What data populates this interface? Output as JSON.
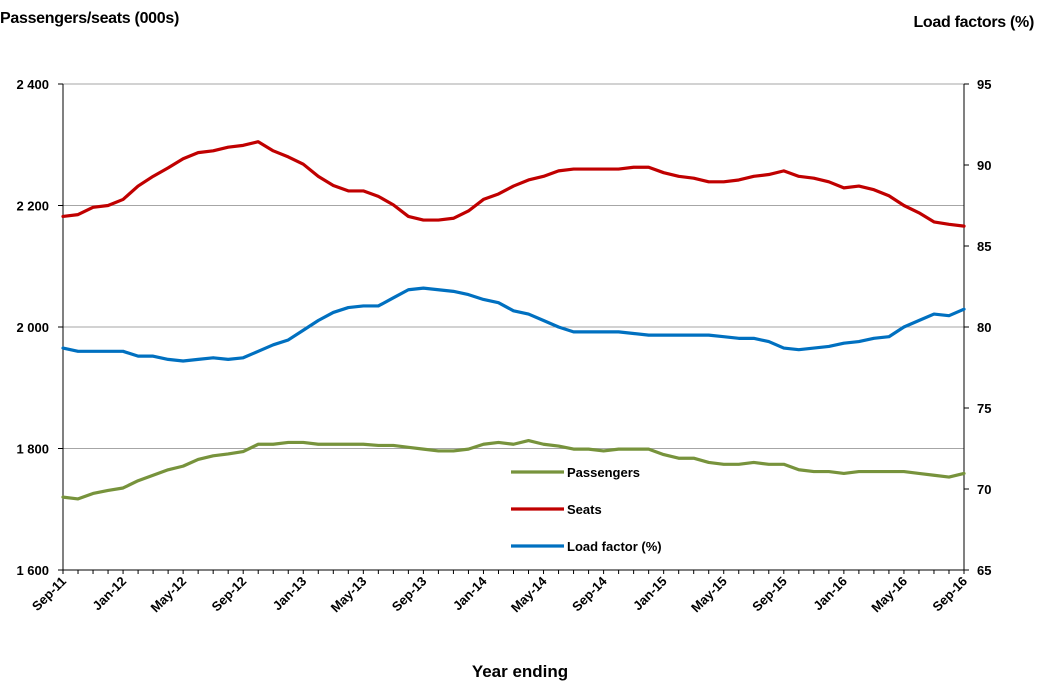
{
  "chart_data": {
    "type": "line",
    "ylabel_left": "Passengers/seats (000s)",
    "ylabel_right": "Load factors (%)",
    "xlabel": "Year ending",
    "ylim_left": [
      1600,
      2400
    ],
    "yticks_left": [
      "1 600",
      "1 800",
      "2 000",
      "2 200",
      "2 400"
    ],
    "ylim_right": [
      65,
      95
    ],
    "yticks_right": [
      "65",
      "70",
      "75",
      "80",
      "85",
      "90",
      "95"
    ],
    "x_tick_labels": [
      "Sep-11",
      "Jan-12",
      "May-12",
      "Sep-12",
      "Jan-13",
      "May-13",
      "Sep-13",
      "Jan-14",
      "May-14",
      "Sep-14",
      "Jan-15",
      "May-15",
      "Sep-15",
      "Jan-16",
      "May-16",
      "Sep-16"
    ],
    "x_months": [
      "Sep-11",
      "Oct-11",
      "Nov-11",
      "Dec-11",
      "Jan-12",
      "Feb-12",
      "Mar-12",
      "Apr-12",
      "May-12",
      "Jun-12",
      "Jul-12",
      "Aug-12",
      "Sep-12",
      "Oct-12",
      "Nov-12",
      "Dec-12",
      "Jan-13",
      "Feb-13",
      "Mar-13",
      "Apr-13",
      "May-13",
      "Jun-13",
      "Jul-13",
      "Aug-13",
      "Sep-13",
      "Oct-13",
      "Nov-13",
      "Dec-13",
      "Jan-14",
      "Feb-14",
      "Mar-14",
      "Apr-14",
      "May-14",
      "Jun-14",
      "Jul-14",
      "Aug-14",
      "Sep-14",
      "Oct-14",
      "Nov-14",
      "Dec-14",
      "Jan-15",
      "Feb-15",
      "Mar-15",
      "Apr-15",
      "May-15",
      "Jun-15",
      "Jul-15",
      "Aug-15",
      "Sep-15",
      "Oct-15",
      "Nov-15",
      "Dec-15",
      "Jan-16",
      "Feb-16",
      "Mar-16",
      "Apr-16",
      "May-16",
      "Jun-16",
      "Jul-16",
      "Aug-16",
      "Sep-16"
    ],
    "grid": true,
    "legend_position": "lower-center",
    "series": [
      {
        "name": "Passengers",
        "axis": "left",
        "color": "#77933C",
        "values": [
          1720,
          1717,
          1726,
          1731,
          1735,
          1747,
          1756,
          1765,
          1771,
          1782,
          1788,
          1791,
          1795,
          1807,
          1807,
          1810,
          1810,
          1807,
          1807,
          1807,
          1807,
          1805,
          1805,
          1802,
          1799,
          1796,
          1796,
          1799,
          1807,
          1810,
          1807,
          1813,
          1807,
          1804,
          1799,
          1799,
          1796,
          1799,
          1799,
          1799,
          1790,
          1784,
          1784,
          1777,
          1774,
          1774,
          1777,
          1774,
          1774,
          1765,
          1762,
          1762,
          1759,
          1762,
          1762,
          1762,
          1762,
          1759,
          1756,
          1753,
          1759
        ]
      },
      {
        "name": "Seats",
        "axis": "left",
        "color": "#C00000",
        "values": [
          2182,
          2185,
          2197,
          2200,
          2210,
          2232,
          2248,
          2262,
          2277,
          2287,
          2290,
          2296,
          2299,
          2305,
          2290,
          2280,
          2268,
          2248,
          2233,
          2224,
          2224,
          2215,
          2201,
          2182,
          2176,
          2176,
          2179,
          2191,
          2210,
          2219,
          2232,
          2242,
          2248,
          2257,
          2260,
          2260,
          2260,
          2260,
          2263,
          2263,
          2254,
          2248,
          2245,
          2239,
          2239,
          2242,
          2248,
          2251,
          2257,
          2248,
          2245,
          2239,
          2229,
          2232,
          2226,
          2216,
          2200,
          2188,
          2173,
          2169,
          2166
        ]
      },
      {
        "name": "Load factor (%)",
        "axis": "right",
        "color": "#0070C0",
        "values": [
          78.7,
          78.5,
          78.5,
          78.5,
          78.5,
          78.2,
          78.2,
          78.0,
          77.9,
          78.0,
          78.1,
          78.0,
          78.1,
          78.5,
          78.9,
          79.2,
          79.8,
          80.4,
          80.9,
          81.2,
          81.3,
          81.3,
          81.8,
          82.3,
          82.4,
          82.3,
          82.2,
          82.0,
          81.7,
          81.5,
          81.0,
          80.8,
          80.4,
          80.0,
          79.7,
          79.7,
          79.7,
          79.7,
          79.6,
          79.5,
          79.5,
          79.5,
          79.5,
          79.5,
          79.4,
          79.3,
          79.3,
          79.1,
          78.7,
          78.6,
          78.7,
          78.8,
          79.0,
          79.1,
          79.3,
          79.4,
          80.0,
          80.4,
          80.8,
          80.7,
          81.1
        ]
      }
    ]
  }
}
